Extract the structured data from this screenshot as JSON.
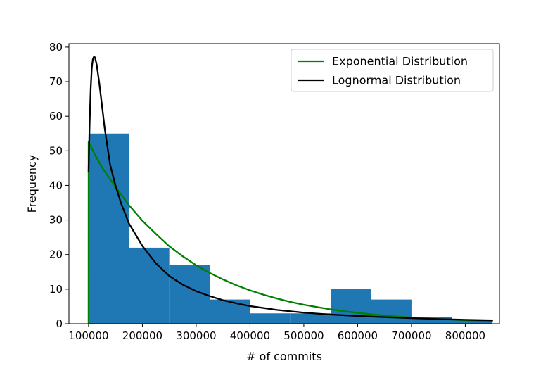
{
  "chart_data": {
    "type": "bar",
    "xlabel": "# of commits",
    "ylabel": "Frequency",
    "xlim": [
      63500,
      863500
    ],
    "ylim": [
      0,
      81
    ],
    "x_ticks": [
      100000,
      200000,
      300000,
      400000,
      500000,
      600000,
      700000,
      800000
    ],
    "x_tick_labels": [
      "100000",
      "200000",
      "300000",
      "400000",
      "500000",
      "600000",
      "700000",
      "800000"
    ],
    "y_ticks": [
      0,
      10,
      20,
      30,
      40,
      50,
      60,
      70,
      80
    ],
    "y_tick_labels": [
      "0",
      "10",
      "20",
      "30",
      "40",
      "50",
      "60",
      "70",
      "80"
    ],
    "histogram": {
      "bin_edges": [
        100000,
        175000,
        250000,
        325000,
        400000,
        475000,
        550000,
        625000,
        700000,
        775000,
        850000
      ],
      "values": [
        55,
        22,
        17,
        7,
        3,
        3,
        10,
        7,
        2,
        1
      ],
      "color": "#1f77b4"
    },
    "legend_location": "upper right",
    "series": [
      {
        "name": "Exponential Distribution",
        "type": "line",
        "color": "#008000",
        "x": [
          100000,
          100100,
          100500,
          110000,
          125000,
          150000,
          175000,
          200000,
          225000,
          250000,
          275000,
          300000,
          325000,
          350000,
          375000,
          400000,
          425000,
          450000,
          475000,
          500000,
          525000,
          550000,
          575000,
          600000,
          625000,
          650000,
          675000,
          700000,
          725000,
          750000,
          775000,
          800000,
          825000,
          850000
        ],
        "y": [
          0,
          52.6,
          52.5,
          49.4,
          45.2,
          39.6,
          34.3,
          29.8,
          26.0,
          22.4,
          19.5,
          16.9,
          14.7,
          12.8,
          11.1,
          9.65,
          8.4,
          7.3,
          6.3,
          5.5,
          4.8,
          4.15,
          3.6,
          3.15,
          2.75,
          2.4,
          2.05,
          1.8,
          1.55,
          1.35,
          1.2,
          1.05,
          0.9,
          0.8
        ]
      },
      {
        "name": "Lognormal Distribution",
        "type": "line",
        "color": "#000000",
        "x": [
          100000,
          102000,
          104000,
          106000,
          108000,
          110000,
          112000,
          115000,
          120000,
          125000,
          130000,
          140000,
          150000,
          160000,
          175000,
          200000,
          225000,
          250000,
          275000,
          300000,
          325000,
          350000,
          375000,
          400000,
          450000,
          500000,
          550000,
          600000,
          650000,
          700000,
          750000,
          800000,
          850000
        ],
        "y": [
          44,
          58,
          68,
          74,
          76.5,
          77.2,
          77,
          75,
          69.5,
          63,
          56.5,
          46,
          40,
          35,
          29,
          22.5,
          17.5,
          13.8,
          11.3,
          9.4,
          8,
          6.8,
          5.9,
          5.1,
          4.0,
          3.2,
          2.65,
          2.25,
          1.9,
          1.6,
          1.35,
          1.15,
          1.0
        ]
      }
    ]
  }
}
